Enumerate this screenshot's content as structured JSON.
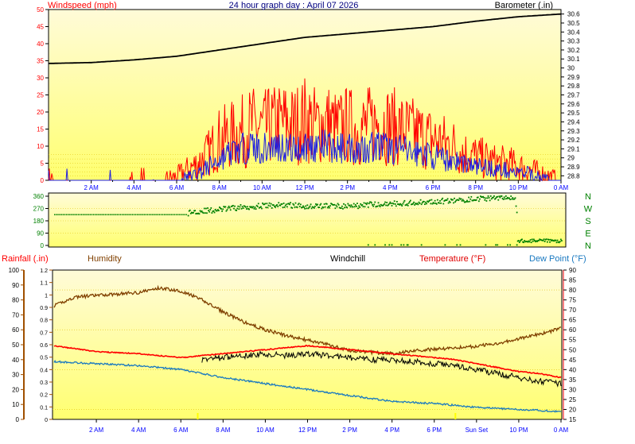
{
  "title": "24 hour graph day : April 07 2026",
  "colors": {
    "wind_speed": "#ff0000",
    "wind_avg": "#2020e0",
    "barometer": "#000000",
    "wind_dir": "#008000",
    "humidity": "#804000",
    "temperature": "#ff0000",
    "windchill": "#000000",
    "dew_point": "#1878c0",
    "rainfall": "#ffff00",
    "time_labels": "#0000ff",
    "axis_left": "#ff0000",
    "axis_right": "#000000",
    "rain_axis": "#a05000"
  },
  "time_labels": [
    "2 AM",
    "4 AM",
    "6 AM",
    "8 AM",
    "10 AM",
    "12 PM",
    "2 PM",
    "4 PM",
    "6 PM",
    "8 PM",
    "10 PM",
    "0 AM"
  ],
  "bottom_time_labels": [
    "2 AM",
    "4 AM",
    "6 AM",
    "8 AM",
    "10 AM",
    "12 PM",
    "2 PM",
    "4 PM",
    "6 PM",
    "Sun Set",
    "10 PM",
    "0 AM"
  ],
  "compass_labels": [
    "N",
    "W",
    "S",
    "E",
    "N"
  ],
  "chart_data": [
    {
      "type": "line",
      "name": "wind-barometer",
      "series": [
        {
          "name": "Windspeed (mph)",
          "axis": "left",
          "points": [
            [
              0,
              1
            ],
            [
              0.5,
              0
            ],
            [
              1,
              0
            ],
            [
              2,
              0
            ],
            [
              3,
              0
            ],
            [
              3.5,
              0
            ],
            [
              4,
              0
            ],
            [
              5,
              0
            ],
            [
              6,
              1
            ],
            [
              6.5,
              3
            ],
            [
              7,
              5
            ],
            [
              7.5,
              8
            ],
            [
              8,
              12
            ],
            [
              8.5,
              13
            ],
            [
              9,
              14
            ],
            [
              9.5,
              16
            ],
            [
              10,
              15
            ],
            [
              10.5,
              16
            ],
            [
              11,
              17
            ],
            [
              11.5,
              16
            ],
            [
              12,
              18
            ],
            [
              12.5,
              16
            ],
            [
              13,
              17
            ],
            [
              13.5,
              15
            ],
            [
              14,
              16
            ],
            [
              14.5,
              15
            ],
            [
              15,
              16
            ],
            [
              15.5,
              17
            ],
            [
              16,
              16
            ],
            [
              16.5,
              15
            ],
            [
              17,
              14
            ],
            [
              17.5,
              13
            ],
            [
              18,
              12
            ],
            [
              18.5,
              11
            ],
            [
              19,
              10
            ],
            [
              19.5,
              8
            ],
            [
              20,
              7
            ],
            [
              20.5,
              6
            ],
            [
              21,
              5
            ],
            [
              21.5,
              5
            ],
            [
              22,
              4
            ],
            [
              22.5,
              3
            ],
            [
              23,
              2
            ],
            [
              24,
              0
            ]
          ]
        },
        {
          "name": "Average",
          "axis": "left",
          "points": [
            [
              0,
              0
            ],
            [
              6,
              0
            ],
            [
              6.5,
              1
            ],
            [
              7,
              2
            ],
            [
              7.5,
              4
            ],
            [
              8,
              6
            ],
            [
              8.5,
              8
            ],
            [
              9,
              9
            ],
            [
              9.5,
              10
            ],
            [
              10,
              9
            ],
            [
              10.5,
              10
            ],
            [
              11,
              10
            ],
            [
              11.5,
              9
            ],
            [
              12,
              10
            ],
            [
              12.5,
              10
            ],
            [
              13,
              10
            ],
            [
              13.5,
              9
            ],
            [
              14,
              10
            ],
            [
              14.5,
              9
            ],
            [
              15,
              10
            ],
            [
              15.5,
              10
            ],
            [
              16,
              9
            ],
            [
              16.5,
              9
            ],
            [
              17,
              8
            ],
            [
              17.5,
              8
            ],
            [
              18,
              7
            ],
            [
              18.5,
              6
            ],
            [
              19,
              6
            ],
            [
              19.5,
              5
            ],
            [
              20,
              4
            ],
            [
              20.5,
              4
            ],
            [
              21,
              3
            ],
            [
              21.5,
              3
            ],
            [
              22,
              2
            ],
            [
              22.5,
              2
            ],
            [
              23,
              1
            ],
            [
              24,
              0
            ]
          ]
        },
        {
          "name": "Barometer (.in)",
          "axis": "right",
          "points": [
            [
              0,
              30.05
            ],
            [
              2,
              30.06
            ],
            [
              4,
              30.09
            ],
            [
              6,
              30.13
            ],
            [
              8,
              30.2
            ],
            [
              10,
              30.27
            ],
            [
              12,
              30.34
            ],
            [
              14,
              30.38
            ],
            [
              16,
              30.42
            ],
            [
              18,
              30.46
            ],
            [
              20,
              30.52
            ],
            [
              22,
              30.57
            ],
            [
              24,
              30.6
            ]
          ]
        }
      ],
      "left_axis": {
        "label": "Windspeed (mph)",
        "min": 0,
        "max": 50,
        "ticks": [
          0,
          5,
          10,
          15,
          20,
          25,
          30,
          35,
          40,
          45,
          50
        ]
      },
      "right_axis": {
        "label": "Barometer (.in)",
        "min": 28.75,
        "max": 30.65,
        "ticks": [
          "28.8",
          "28.9",
          "29",
          "29.1",
          "29.2",
          "29.3",
          "29.4",
          "29.5",
          "29.6",
          "29.7",
          "29.8",
          "29.9",
          "30",
          "30.1",
          "30.2",
          "30.3",
          "30.4",
          "30.5",
          "30.6"
        ]
      },
      "x_range_hours": [
        0,
        24
      ]
    },
    {
      "type": "scatter",
      "name": "wind-direction",
      "series": [
        {
          "name": "Wind direction",
          "points": [
            [
              0,
              225
            ],
            [
              1,
              225
            ],
            [
              2,
              225
            ],
            [
              3,
              225
            ],
            [
              4,
              225
            ],
            [
              5,
              225
            ],
            [
              6,
              225
            ],
            [
              6.4,
              240
            ],
            [
              6.8,
              250
            ],
            [
              7.5,
              255
            ],
            [
              8,
              265
            ],
            [
              9,
              280
            ],
            [
              10,
              290
            ],
            [
              11,
              295
            ],
            [
              12,
              285
            ],
            [
              13,
              290
            ],
            [
              14,
              285
            ],
            [
              15,
              300
            ],
            [
              16,
              305
            ],
            [
              17,
              310
            ],
            [
              18,
              320
            ],
            [
              19,
              330
            ],
            [
              20,
              340
            ],
            [
              21,
              350
            ],
            [
              21.8,
              355
            ],
            [
              22,
              30
            ],
            [
              22.5,
              45
            ],
            [
              23,
              25
            ],
            [
              24,
              10
            ]
          ]
        }
      ],
      "y_axis": {
        "min": 0,
        "max": 360,
        "ticks": [
          0,
          90,
          180,
          270,
          360
        ]
      },
      "x_range_hours": [
        0,
        24
      ]
    },
    {
      "type": "line",
      "name": "temperature-humidity",
      "series": [
        {
          "name": "Humidity",
          "axis": "left",
          "points": [
            [
              0,
              76
            ],
            [
              1,
              82
            ],
            [
              2,
              83
            ],
            [
              3,
              84
            ],
            [
              4,
              85
            ],
            [
              5,
              88
            ],
            [
              6,
              86
            ],
            [
              7,
              80
            ],
            [
              8,
              72
            ],
            [
              9,
              65
            ],
            [
              10,
              60
            ],
            [
              11,
              56
            ],
            [
              12,
              53
            ],
            [
              13,
              50
            ],
            [
              14,
              46
            ],
            [
              15,
              45
            ],
            [
              16,
              44
            ],
            [
              17,
              46
            ],
            [
              18,
              47
            ],
            [
              19,
              48
            ],
            [
              20,
              49
            ],
            [
              21,
              51
            ],
            [
              22,
              54
            ],
            [
              23,
              57
            ],
            [
              24,
              61
            ]
          ]
        },
        {
          "name": "Temperature (°F)",
          "axis": "right",
          "points": [
            [
              0,
              52
            ],
            [
              2,
              49
            ],
            [
              4,
              48
            ],
            [
              6,
              46
            ],
            [
              8,
              48
            ],
            [
              10,
              50
            ],
            [
              12,
              52
            ],
            [
              13,
              51
            ],
            [
              14,
              50
            ],
            [
              15,
              49
            ],
            [
              16,
              48
            ],
            [
              17,
              47
            ],
            [
              18,
              46
            ],
            [
              19,
              45
            ],
            [
              20,
              43
            ],
            [
              21,
              41
            ],
            [
              22,
              39
            ],
            [
              23,
              38
            ],
            [
              24,
              36
            ]
          ]
        },
        {
          "name": "Windchill",
          "axis": "right",
          "points": [
            [
              7,
              45
            ],
            [
              8,
              46
            ],
            [
              9,
              47
            ],
            [
              10,
              48
            ],
            [
              11,
              47
            ],
            [
              12,
              48
            ],
            [
              13,
              47
            ],
            [
              14,
              46
            ],
            [
              15,
              45
            ],
            [
              16,
              45
            ],
            [
              17,
              44
            ],
            [
              18,
              43
            ],
            [
              19,
              42
            ],
            [
              20,
              40
            ],
            [
              21,
              38
            ],
            [
              22,
              36
            ],
            [
              23,
              34
            ],
            [
              24,
              33
            ]
          ]
        },
        {
          "name": "Dew Point (°F)",
          "axis": "right",
          "points": [
            [
              0,
              44
            ],
            [
              2,
              43
            ],
            [
              4,
              42
            ],
            [
              6,
              40
            ],
            [
              8,
              36
            ],
            [
              10,
              33
            ],
            [
              12,
              30
            ],
            [
              14,
              27
            ],
            [
              16,
              24
            ],
            [
              18,
              23
            ],
            [
              20,
              21
            ],
            [
              22,
              20
            ],
            [
              24,
              19
            ]
          ]
        }
      ],
      "rainfall_axis": {
        "label": "Rainfall (.in)",
        "min": 0,
        "max": 1.2,
        "ticks": [
          "0",
          "0.1",
          "0.2",
          "0.3",
          "0.4",
          "0.5",
          "0.6",
          "0.7",
          "0.8",
          "0.9",
          "1",
          "1.1",
          "1.2"
        ]
      },
      "left_axis": {
        "label": "Humidity",
        "min": 0,
        "max": 100,
        "ticks": [
          0,
          10,
          20,
          30,
          40,
          50,
          60,
          70,
          80,
          90,
          100
        ]
      },
      "right_axis": {
        "label": "Temperature (°F)",
        "min": 15,
        "max": 90,
        "ticks": [
          15,
          20,
          25,
          30,
          35,
          40,
          45,
          50,
          55,
          60,
          65,
          70,
          75,
          80,
          85,
          90
        ]
      },
      "extra_labels": [
        "Windchill",
        "Dew Point (°F)"
      ],
      "x_range_hours": [
        0,
        24
      ]
    }
  ]
}
